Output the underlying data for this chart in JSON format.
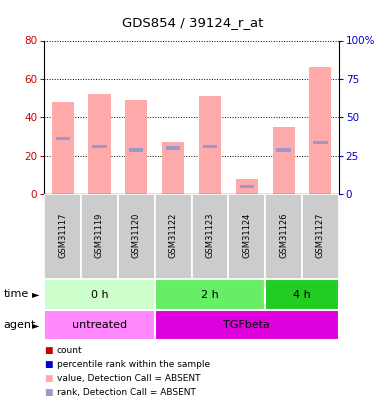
{
  "title": "GDS854 / 39124_r_at",
  "samples": [
    "GSM31117",
    "GSM31119",
    "GSM31120",
    "GSM31122",
    "GSM31123",
    "GSM31124",
    "GSM31126",
    "GSM31127"
  ],
  "pink_bar_heights": [
    48,
    52,
    49,
    27,
    51,
    8,
    35,
    66
  ],
  "blue_marker_values": [
    29,
    25,
    23,
    24,
    25,
    4,
    23,
    27
  ],
  "ylim_left": [
    0,
    80
  ],
  "ylim_right": [
    0,
    100
  ],
  "yticks_left": [
    0,
    20,
    40,
    60,
    80
  ],
  "yticks_right": [
    0,
    25,
    50,
    75,
    100
  ],
  "time_groups": [
    {
      "label": "0 h",
      "start": 0,
      "end": 3
    },
    {
      "label": "2 h",
      "start": 3,
      "end": 6
    },
    {
      "label": "4 h",
      "start": 6,
      "end": 8
    }
  ],
  "time_colors": [
    "#ccffcc",
    "#66ee66",
    "#22cc22"
  ],
  "agent_groups": [
    {
      "label": "untreated",
      "start": 0,
      "end": 3
    },
    {
      "label": "TGFbeta",
      "start": 3,
      "end": 8
    }
  ],
  "agent_colors": [
    "#ff88ff",
    "#dd00dd"
  ],
  "bar_color": "#ffaaaa",
  "blue_color": "#9999cc",
  "tick_color_left": "#cc0000",
  "tick_color_right": "#0000cc",
  "background_color": "#ffffff",
  "sample_box_color": "#cccccc",
  "legend_colors": [
    "#cc0000",
    "#0000cc",
    "#ffaaaa",
    "#9999cc"
  ],
  "legend_labels": [
    "count",
    "percentile rank within the sample",
    "value, Detection Call = ABSENT",
    "rank, Detection Call = ABSENT"
  ]
}
